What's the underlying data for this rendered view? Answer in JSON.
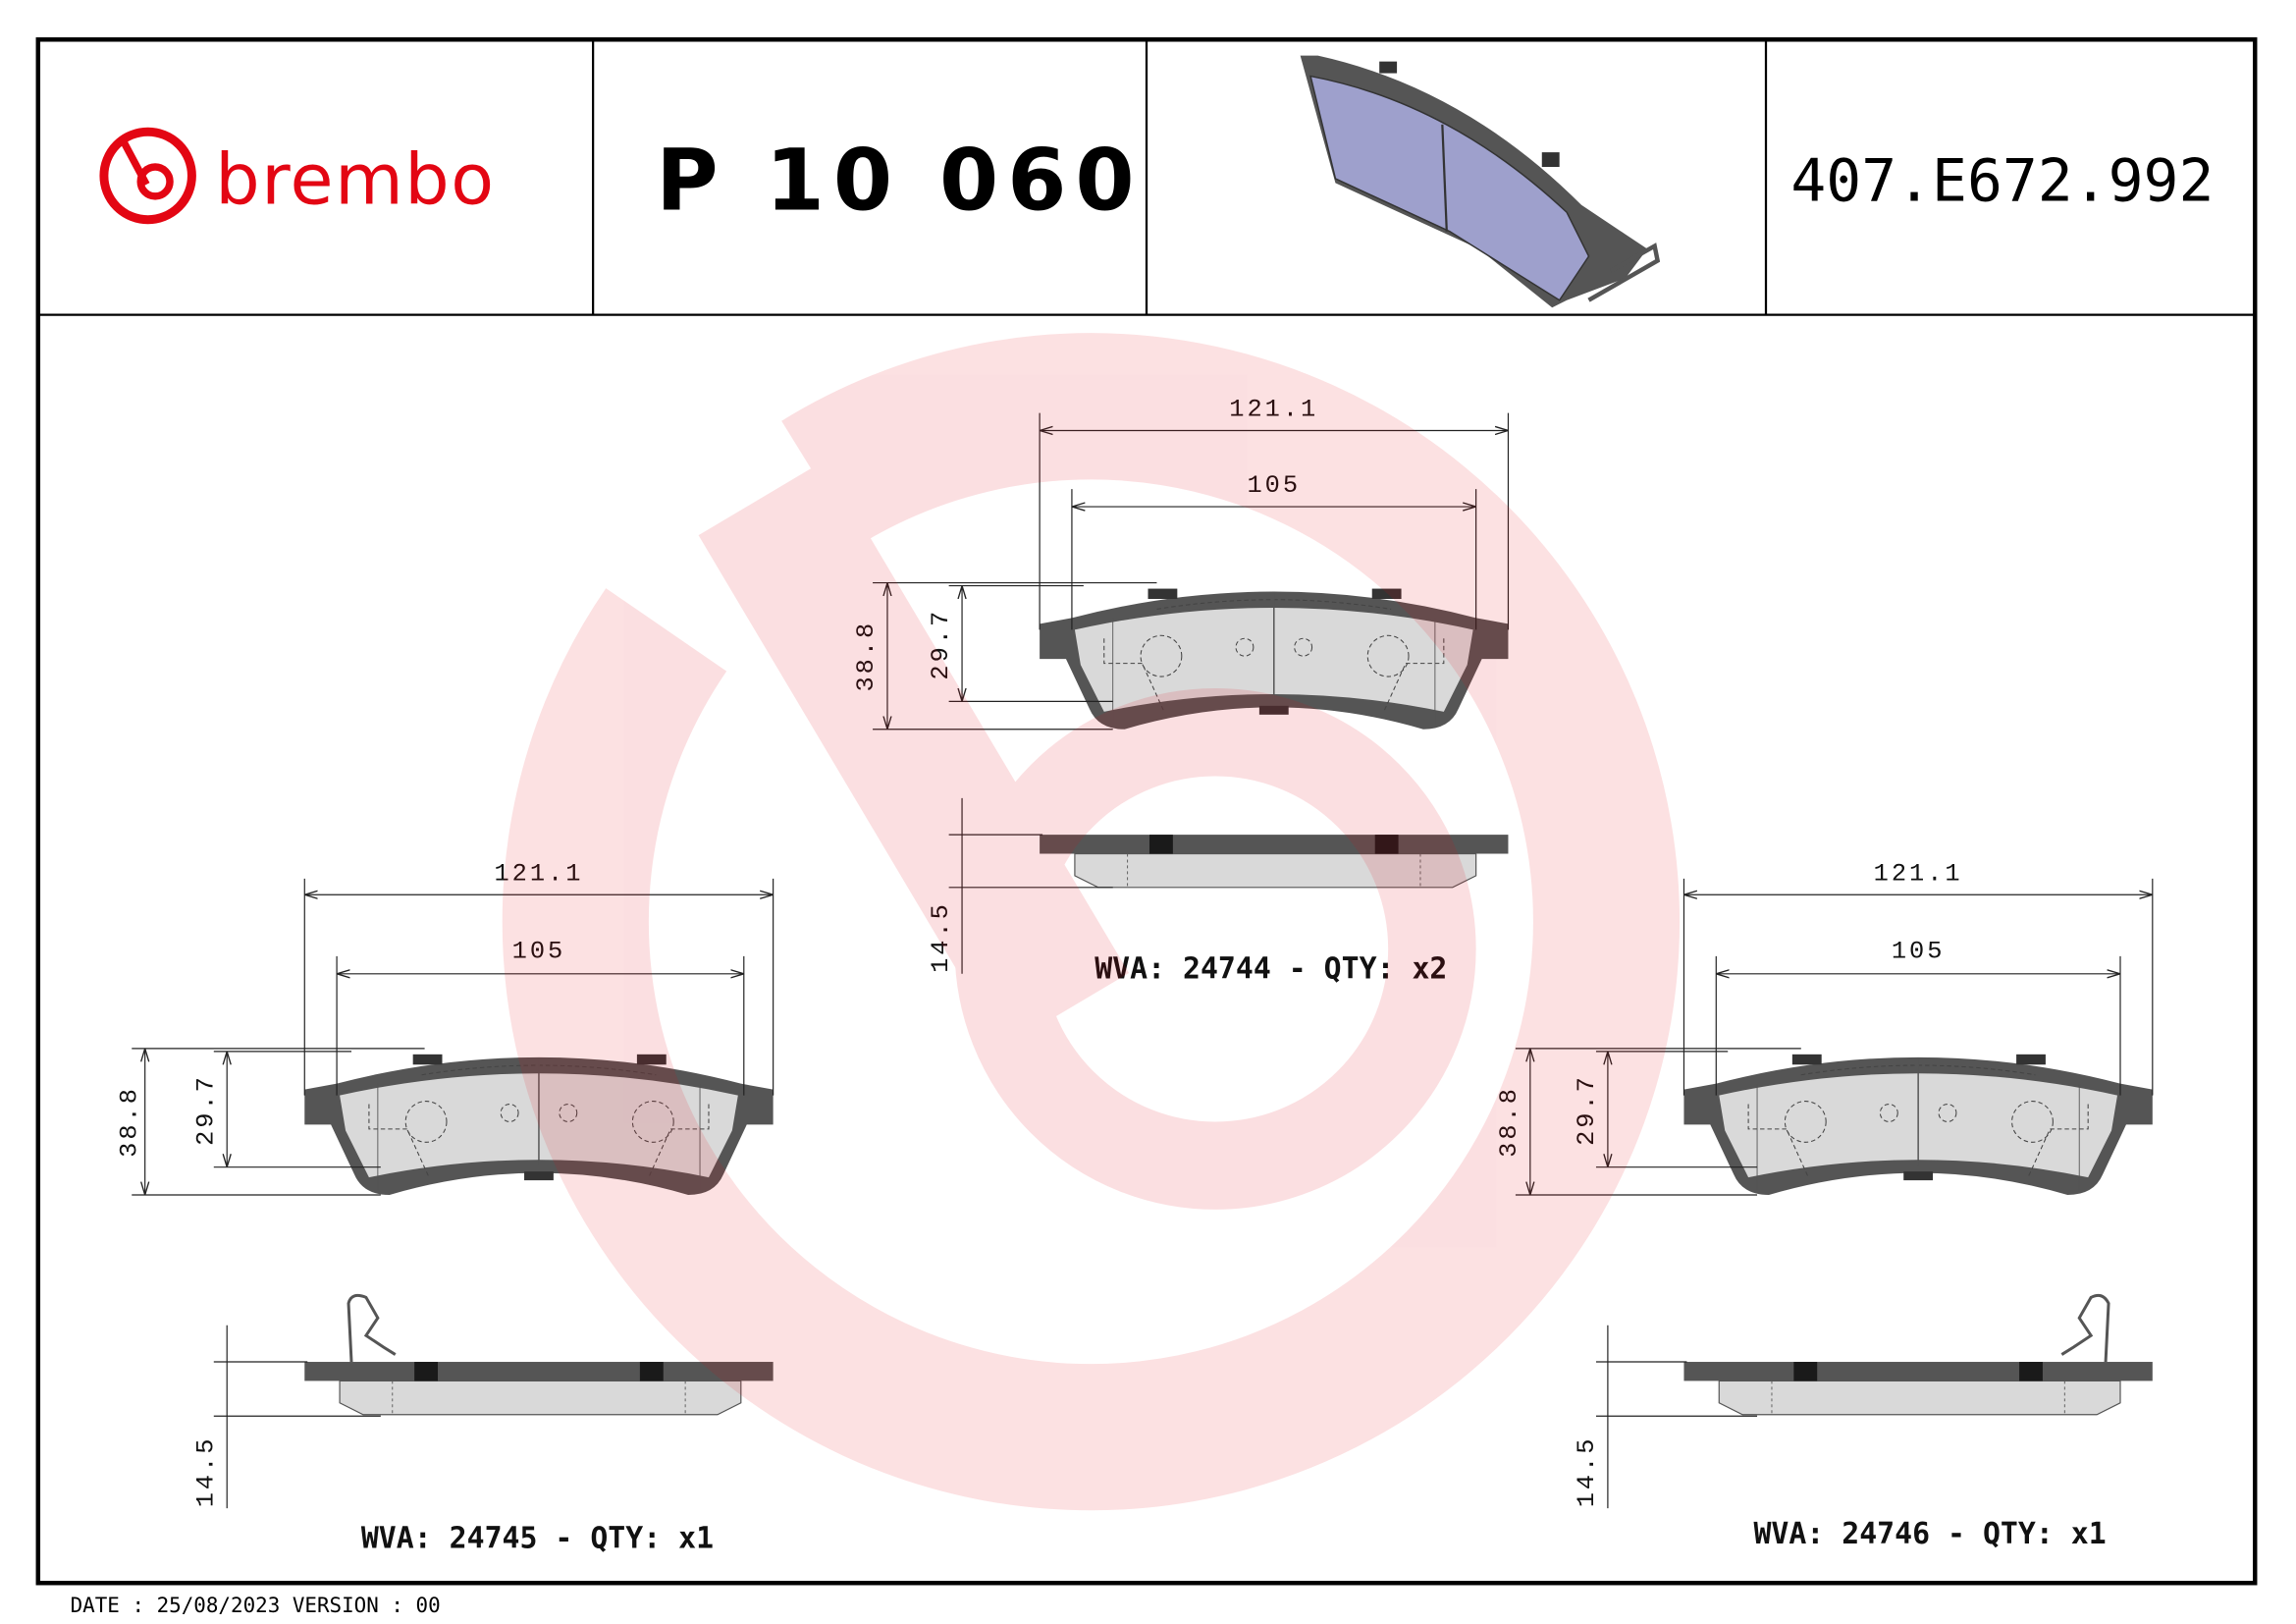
{
  "header": {
    "brand": "brembo",
    "part_number": "P 10 060",
    "reference": "407.E672.992",
    "product_image": "brake-pad-3d-render"
  },
  "views": [
    {
      "wva_label": "WVA: 24744 - QTY: x2",
      "dims": {
        "overall_length": "121.1",
        "friction_length": "105",
        "overall_height": "38.8",
        "friction_height": "29.7",
        "thickness": "14.5"
      }
    },
    {
      "wva_label": "WVA: 24745 - QTY: x1",
      "dims": {
        "overall_length": "121.1",
        "friction_length": "105",
        "overall_height": "38.8",
        "friction_height": "29.7",
        "thickness": "14.5"
      }
    },
    {
      "wva_label": "WVA: 24746 - QTY: x1",
      "dims": {
        "overall_length": "121.1",
        "friction_length": "105",
        "overall_height": "38.8",
        "friction_height": "29.7",
        "thickness": "14.5"
      }
    }
  ],
  "footer": {
    "date_version": "DATE : 25/08/2023 VERSION : 00"
  },
  "colors": {
    "brand_red": "#e30613",
    "backing_plate": "#555555",
    "friction_material": "#d9d9d9",
    "render_pad": "#9ea0cc"
  }
}
